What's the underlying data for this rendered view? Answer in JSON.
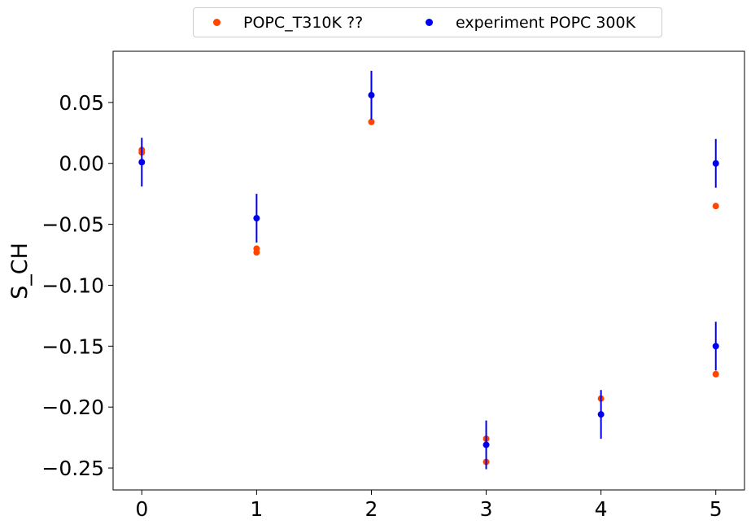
{
  "chart_data": {
    "type": "scatter",
    "title": "",
    "xlabel": "",
    "ylabel": "S_CH",
    "xlim": [
      -0.25,
      5.25
    ],
    "ylim": [
      -0.268,
      0.092
    ],
    "xticks": [
      0,
      1,
      2,
      3,
      4,
      5
    ],
    "xtick_labels": [
      "0",
      "1",
      "2",
      "3",
      "4",
      "5"
    ],
    "yticks": [
      0.05,
      0.0,
      -0.05,
      -0.1,
      -0.15,
      -0.2,
      -0.25
    ],
    "ytick_labels": [
      "0.05",
      "0.00",
      "−0.05",
      "−0.10",
      "−0.15",
      "−0.20",
      "−0.25"
    ],
    "grid": false,
    "legend_position": "top-center",
    "series": [
      {
        "name": "POPC_T310K ??",
        "color": "#ff4500",
        "points": [
          {
            "x": 0,
            "y": 0.011
          },
          {
            "x": 0,
            "y": 0.009
          },
          {
            "x": 1,
            "y": -0.07
          },
          {
            "x": 1,
            "y": -0.073
          },
          {
            "x": 2,
            "y": 0.034
          },
          {
            "x": 3,
            "y": -0.226
          },
          {
            "x": 3,
            "y": -0.245
          },
          {
            "x": 4,
            "y": -0.193
          },
          {
            "x": 5,
            "y": -0.035
          },
          {
            "x": 5,
            "y": -0.173
          }
        ]
      },
      {
        "name": "experiment POPC 300K",
        "color": "#0000ee",
        "points": [
          {
            "x": 0,
            "y": 0.001,
            "err": 0.02
          },
          {
            "x": 1,
            "y": -0.045,
            "err": 0.02
          },
          {
            "x": 2,
            "y": 0.056,
            "err": 0.02
          },
          {
            "x": 3,
            "y": -0.231,
            "err": 0.02
          },
          {
            "x": 4,
            "y": -0.206,
            "err": 0.02
          },
          {
            "x": 5,
            "y": 0.0,
            "err": 0.02
          },
          {
            "x": 5,
            "y": -0.15,
            "err": 0.02
          }
        ]
      }
    ]
  }
}
